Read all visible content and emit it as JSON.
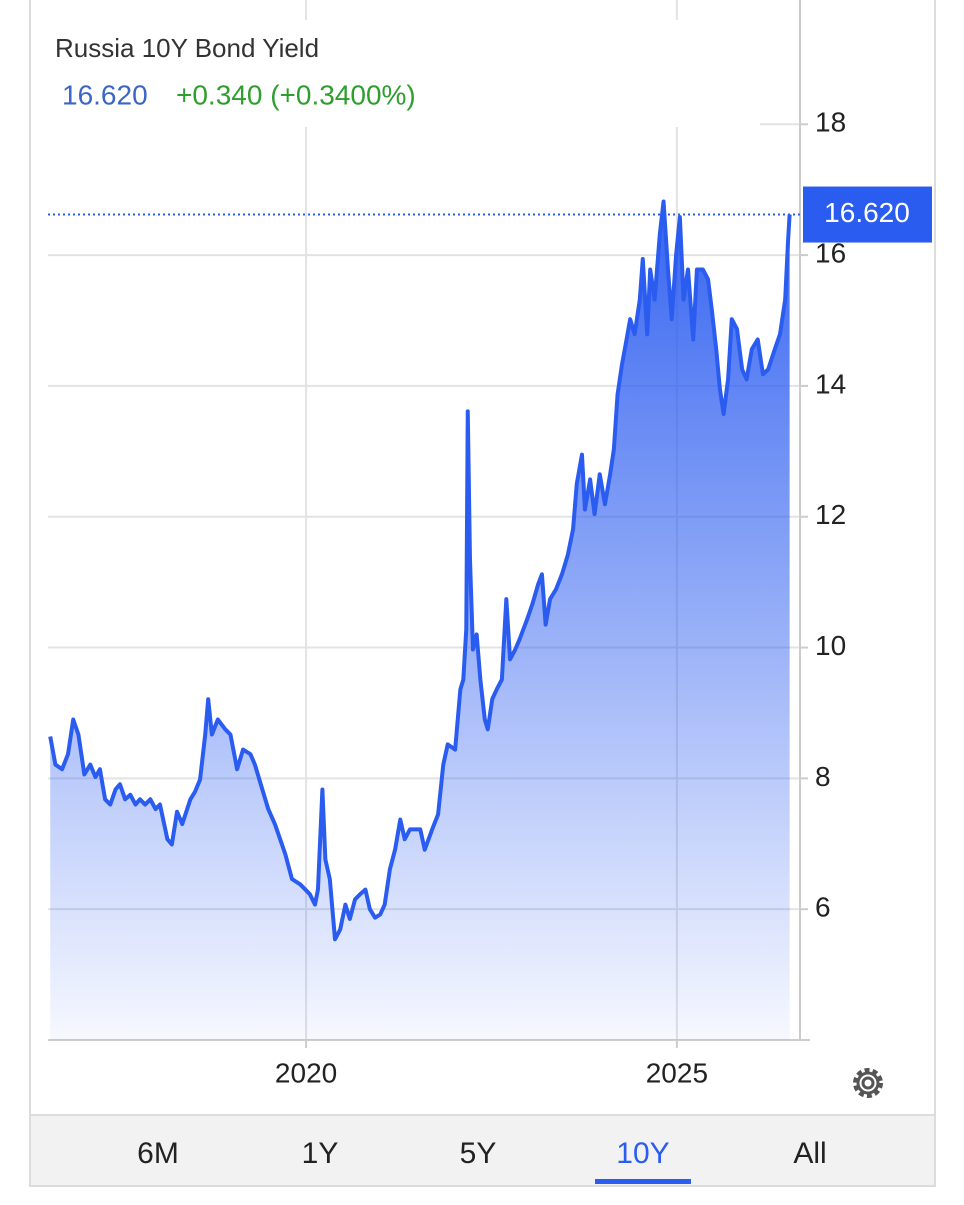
{
  "chart_data": {
    "type": "area",
    "title": "Russia 10Y Bond Yield",
    "price_label": "16.620",
    "change": "+0.340 (+0.3400%)",
    "color": "#2b5cf0",
    "price_color": "#3a66c6",
    "change_color": "#2e9e2e",
    "x": [
      2016.55,
      2016.62,
      2016.71,
      2016.79,
      2016.86,
      2016.93,
      2017.01,
      2017.09,
      2017.16,
      2017.22,
      2017.29,
      2017.36,
      2017.43,
      2017.49,
      2017.56,
      2017.63,
      2017.7,
      2017.76,
      2017.83,
      2017.9,
      2017.97,
      2018.03,
      2018.13,
      2018.19,
      2018.26,
      2018.33,
      2018.44,
      2018.5,
      2018.57,
      2018.64,
      2018.68,
      2018.73,
      2018.81,
      2018.91,
      2018.98,
      2019.07,
      2019.15,
      2019.25,
      2019.31,
      2019.41,
      2019.49,
      2019.58,
      2019.65,
      2019.72,
      2019.81,
      2019.92,
      2019.99,
      2020.05,
      2020.12,
      2020.16,
      2020.22,
      2020.26,
      2020.32,
      2020.39,
      2020.46,
      2020.53,
      2020.59,
      2020.66,
      2020.73,
      2020.8,
      2020.86,
      2020.93,
      2021.0,
      2021.06,
      2021.13,
      2021.2,
      2021.27,
      2021.33,
      2021.4,
      2021.54,
      2021.6,
      2021.7,
      2021.78,
      2021.85,
      2021.91,
      2022.01,
      2022.08,
      2022.12,
      2022.16,
      2022.18,
      2022.21,
      2022.25,
      2022.3,
      2022.35,
      2022.41,
      2022.45,
      2022.51,
      2022.57,
      2022.64,
      2022.7,
      2022.75,
      2022.82,
      2022.88,
      2022.98,
      2023.05,
      2023.13,
      2023.18,
      2023.23,
      2023.29,
      2023.37,
      2023.45,
      2023.53,
      2023.6,
      2023.65,
      2023.72,
      2023.76,
      2023.83,
      2023.89,
      2023.96,
      2024.03,
      2024.1,
      2024.15,
      2024.2,
      2024.26,
      2024.31,
      2024.37,
      2024.43,
      2024.5,
      2024.54,
      2024.6,
      2024.64,
      2024.7,
      2024.77,
      2024.82,
      2024.88,
      2024.93,
      2024.99,
      2025.04,
      2025.09,
      2025.15,
      2025.22,
      2025.27,
      2025.35,
      2025.42,
      2025.47,
      2025.53,
      2025.58,
      2025.63,
      2025.69,
      2025.74,
      2025.81,
      2025.88,
      2025.94,
      2026.01,
      2026.09,
      2026.16,
      2026.23,
      2026.32,
      2026.39,
      2026.46,
      2026.5,
      2026.52
    ],
    "values": [
      8.64,
      8.21,
      8.14,
      8.37,
      8.9,
      8.67,
      8.06,
      8.21,
      8.02,
      8.14,
      7.68,
      7.6,
      7.83,
      7.91,
      7.68,
      7.75,
      7.6,
      7.68,
      7.6,
      7.68,
      7.53,
      7.6,
      7.07,
      6.99,
      7.49,
      7.3,
      7.68,
      7.79,
      7.98,
      8.67,
      9.21,
      8.67,
      8.9,
      8.75,
      8.67,
      8.14,
      8.44,
      8.37,
      8.21,
      7.83,
      7.53,
      7.3,
      7.07,
      6.84,
      6.46,
      6.38,
      6.3,
      6.23,
      6.07,
      6.3,
      7.83,
      6.76,
      6.46,
      5.54,
      5.69,
      6.07,
      5.85,
      6.15,
      6.23,
      6.3,
      6.0,
      5.87,
      5.92,
      6.07,
      6.61,
      6.91,
      7.37,
      7.07,
      7.22,
      7.22,
      6.91,
      7.22,
      7.45,
      8.21,
      8.52,
      8.44,
      9.36,
      9.51,
      10.28,
      13.61,
      11.35,
      9.97,
      10.2,
      9.51,
      8.9,
      8.75,
      9.21,
      9.36,
      9.51,
      10.74,
      9.82,
      9.97,
      10.13,
      10.43,
      10.66,
      10.97,
      11.12,
      10.35,
      10.74,
      10.89,
      11.12,
      11.42,
      11.81,
      12.5,
      12.95,
      12.11,
      12.57,
      12.04,
      12.65,
      12.19,
      12.65,
      13.03,
      13.87,
      14.33,
      14.64,
      15.02,
      14.79,
      15.32,
      15.94,
      14.79,
      15.78,
      15.32,
      16.32,
      16.82,
      15.78,
      15.02,
      16.01,
      16.58,
      15.32,
      15.78,
      14.71,
      15.78,
      15.78,
      15.63,
      15.17,
      14.56,
      13.95,
      13.57,
      14.1,
      15.02,
      14.87,
      14.25,
      14.1,
      14.56,
      14.71,
      14.18,
      14.25,
      14.56,
      14.79,
      15.32,
      16.24,
      16.62
    ],
    "xlim": [
      2016.52,
      2026.66
    ],
    "ylim": [
      4.0,
      19.9
    ],
    "xticks": [
      2020,
      2025
    ],
    "yticks": [
      6,
      8,
      10,
      12,
      14,
      16,
      18
    ],
    "grid": true
  },
  "tabs": [
    "6M",
    "1Y",
    "5Y",
    "10Y",
    "All"
  ],
  "active_tab": 3
}
